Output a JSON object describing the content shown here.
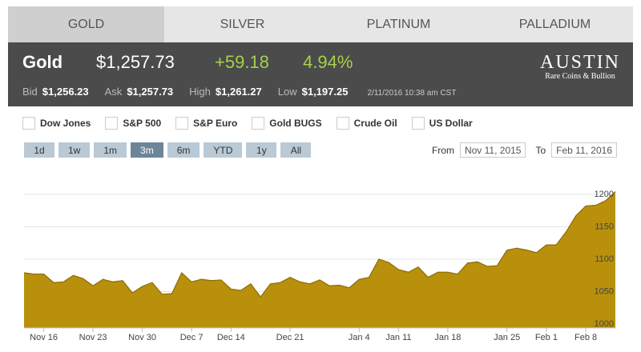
{
  "tabs": [
    "GOLD",
    "SILVER",
    "PLATINUM",
    "PALLADIUM"
  ],
  "quote": {
    "name": "Gold",
    "price": "$1,257.73",
    "change": "+59.18",
    "change_pct": "4.94%"
  },
  "details": [
    {
      "label": "Bid",
      "value": "$1,256.23"
    },
    {
      "label": "Ask",
      "value": "$1,257.73"
    },
    {
      "label": "High",
      "value": "$1,261.27"
    },
    {
      "label": "Low",
      "value": "$1,197.25"
    }
  ],
  "timestamp": "2/11/2016 10:38 am CST",
  "logo": {
    "name": "AUSTIN",
    "tagline": "Rare Coins & Bullion"
  },
  "compare": [
    "Dow Jones",
    "S&P 500",
    "S&P Euro",
    "Gold BUGS",
    "Crude Oil",
    "US Dollar"
  ],
  "ranges": [
    "1d",
    "1w",
    "1m",
    "3m",
    "6m",
    "YTD",
    "1y",
    "All"
  ],
  "date_range": {
    "from_label": "From",
    "from": "Nov 11, 2015",
    "to_label": "To",
    "to": "Feb 11, 2016"
  },
  "chart_data": {
    "type": "area",
    "color": "#b8900c",
    "line_color": "#8c6c05",
    "categories": [
      null,
      null,
      "Nov 16",
      null,
      null,
      null,
      null,
      "Nov 23",
      null,
      null,
      null,
      null,
      "Nov 30",
      null,
      null,
      null,
      null,
      "Dec 7",
      null,
      null,
      null,
      "Dec 14",
      null,
      null,
      null,
      null,
      null,
      "Dec 21",
      null,
      null,
      null,
      null,
      null,
      null,
      "Jan 4",
      null,
      null,
      null,
      "Jan 11",
      null,
      null,
      null,
      null,
      "Jan 18",
      null,
      null,
      null,
      null,
      null,
      "Jan 25",
      null,
      null,
      null,
      "Feb 1",
      null,
      null,
      null,
      "Feb 8",
      null,
      null,
      null
    ],
    "values": [
      1079,
      1077,
      1077,
      1064,
      1065,
      1075,
      1070,
      1059,
      1069,
      1065,
      1067,
      1048,
      1058,
      1064,
      1046,
      1047,
      1079,
      1065,
      1069,
      1067,
      1068,
      1054,
      1052,
      1062,
      1042,
      1062,
      1064,
      1072,
      1065,
      1062,
      1068,
      1059,
      1060,
      1056,
      1069,
      1072,
      1100,
      1095,
      1084,
      1080,
      1088,
      1072,
      1080,
      1080,
      1077,
      1094,
      1096,
      1089,
      1090,
      1114,
      1117,
      1114,
      1110,
      1122,
      1122,
      1142,
      1167,
      1182,
      1183,
      1190,
      1204
    ],
    "ylim": [
      994,
      1222
    ],
    "yticks": [
      1000,
      1050,
      1100,
      1150,
      1200
    ],
    "grid": true
  }
}
